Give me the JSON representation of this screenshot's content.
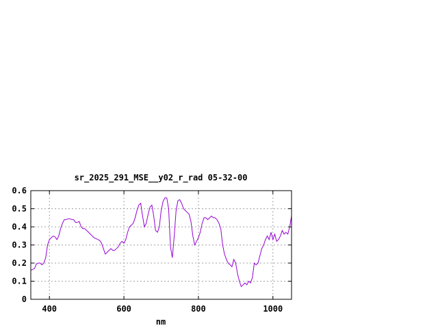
{
  "chart_data": {
    "type": "line",
    "title": "sr_2025_291_MSE__y02_r_rad 05-32-00",
    "xlabel": "nm",
    "ylabel": "",
    "xlim": [
      350,
      1050
    ],
    "ylim": [
      0,
      0.6
    ],
    "xticks": [
      400,
      600,
      800,
      1000
    ],
    "xtick_labels": [
      "400",
      "600",
      "800",
      "1000"
    ],
    "yticks": [
      0,
      0.1,
      0.2,
      0.3,
      0.4,
      0.5,
      0.6
    ],
    "ytick_labels": [
      "0",
      "0.1",
      "0.2",
      "0.3",
      "0.4",
      "0.5",
      "0.6"
    ],
    "grid": true,
    "legend": "none",
    "line_color": "#9400d3",
    "series": [
      {
        "x": [
          350,
          355,
          360,
          365,
          370,
          375,
          380,
          385,
          390,
          395,
          400,
          405,
          410,
          415,
          420,
          425,
          430,
          435,
          440,
          445,
          450,
          455,
          460,
          465,
          470,
          475,
          480,
          485,
          490,
          495,
          500,
          505,
          510,
          515,
          520,
          525,
          530,
          535,
          540,
          545,
          550,
          555,
          560,
          565,
          570,
          575,
          580,
          585,
          590,
          595,
          600,
          605,
          610,
          615,
          620,
          625,
          630,
          635,
          640,
          645,
          650,
          655,
          660,
          665,
          670,
          675,
          680,
          685,
          690,
          695,
          700,
          705,
          710,
          715,
          720,
          725,
          730,
          735,
          740,
          745,
          750,
          755,
          760,
          765,
          770,
          775,
          780,
          785,
          790,
          795,
          800,
          805,
          810,
          815,
          820,
          825,
          830,
          835,
          840,
          845,
          850,
          855,
          860,
          865,
          870,
          875,
          880,
          885,
          890,
          895,
          900,
          905,
          910,
          915,
          920,
          925,
          930,
          935,
          940,
          945,
          950,
          955,
          960,
          965,
          970,
          975,
          980,
          985,
          990,
          995,
          1000,
          1005,
          1010,
          1015,
          1020,
          1025,
          1030,
          1035,
          1040,
          1045,
          1050
        ],
        "values": [
          0.16,
          0.165,
          0.17,
          0.195,
          0.2,
          0.2,
          0.19,
          0.2,
          0.23,
          0.3,
          0.33,
          0.34,
          0.35,
          0.345,
          0.33,
          0.35,
          0.39,
          0.42,
          0.44,
          0.44,
          0.445,
          0.445,
          0.44,
          0.44,
          0.425,
          0.425,
          0.43,
          0.4,
          0.39,
          0.39,
          0.38,
          0.37,
          0.36,
          0.35,
          0.34,
          0.335,
          0.33,
          0.325,
          0.31,
          0.28,
          0.25,
          0.26,
          0.27,
          0.28,
          0.27,
          0.27,
          0.28,
          0.29,
          0.31,
          0.32,
          0.31,
          0.33,
          0.37,
          0.4,
          0.41,
          0.42,
          0.45,
          0.49,
          0.52,
          0.53,
          0.46,
          0.4,
          0.42,
          0.47,
          0.51,
          0.52,
          0.46,
          0.38,
          0.37,
          0.4,
          0.49,
          0.54,
          0.56,
          0.56,
          0.5,
          0.29,
          0.23,
          0.35,
          0.49,
          0.545,
          0.55,
          0.53,
          0.5,
          0.49,
          0.48,
          0.47,
          0.43,
          0.35,
          0.3,
          0.32,
          0.34,
          0.37,
          0.42,
          0.45,
          0.45,
          0.44,
          0.45,
          0.46,
          0.45,
          0.45,
          0.44,
          0.42,
          0.39,
          0.3,
          0.25,
          0.22,
          0.2,
          0.19,
          0.18,
          0.22,
          0.2,
          0.14,
          0.1,
          0.07,
          0.08,
          0.09,
          0.08,
          0.1,
          0.09,
          0.12,
          0.2,
          0.19,
          0.2,
          0.24,
          0.28,
          0.3,
          0.33,
          0.35,
          0.33,
          0.37,
          0.33,
          0.36,
          0.32,
          0.33,
          0.35,
          0.38,
          0.36,
          0.37,
          0.36,
          0.4,
          0.46
        ]
      }
    ]
  }
}
